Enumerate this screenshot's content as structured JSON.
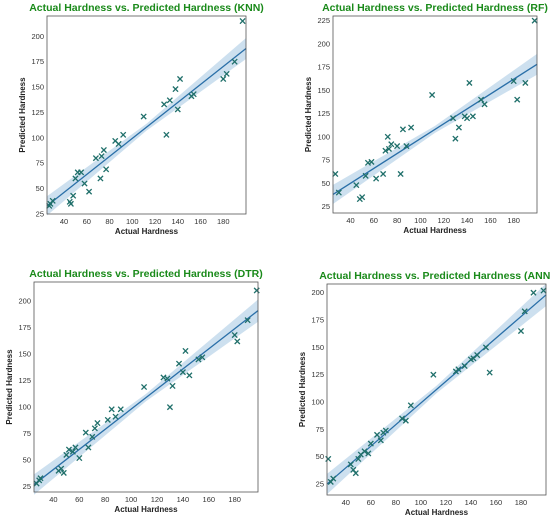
{
  "colors": {
    "marker": "#1f6f6a",
    "line": "#2a6fa8",
    "band": "#bcd6ea",
    "title": "#1a8a1a"
  },
  "chart_data": [
    {
      "type": "scatter",
      "title": "Actual Hardness vs. Predicted Hardness (KNN)",
      "xlabel": "Actual Hardness",
      "ylabel": "Predicted Hardness",
      "xlim": [
        25,
        200
      ],
      "ylim": [
        25,
        220
      ],
      "xticks": [
        40,
        60,
        80,
        100,
        120,
        140,
        160,
        180
      ],
      "yticks": [
        25,
        50,
        75,
        100,
        125,
        150,
        175,
        200
      ],
      "fit": {
        "x": [
          25,
          200
        ],
        "y": [
          33,
          188
        ]
      },
      "x": [
        27,
        28,
        30,
        45,
        46,
        48,
        50,
        52,
        55,
        58,
        62,
        68,
        72,
        73,
        75,
        77,
        85,
        88,
        92,
        110,
        128,
        130,
        133,
        138,
        140,
        142,
        152,
        154,
        180,
        183,
        190,
        197
      ],
      "y": [
        33,
        35,
        38,
        37,
        35,
        43,
        60,
        66,
        66,
        55,
        47,
        80,
        60,
        82,
        88,
        69,
        97,
        94,
        103,
        121,
        133,
        103,
        137,
        148,
        128,
        158,
        141,
        143,
        158,
        163,
        175,
        215
      ]
    },
    {
      "type": "scatter",
      "title": "Actual Hardness vs. Predicted Hardness (RF)",
      "xlabel": "Actual Hardness",
      "ylabel": "Predicted Hardness",
      "xlim": [
        25,
        200
      ],
      "ylim": [
        18,
        230
      ],
      "xticks": [
        40,
        60,
        80,
        100,
        120,
        140,
        160,
        180
      ],
      "yticks": [
        25,
        50,
        75,
        100,
        125,
        150,
        175,
        200,
        225
      ],
      "fit": {
        "x": [
          25,
          200
        ],
        "y": [
          38,
          178
        ]
      },
      "x": [
        27,
        30,
        45,
        48,
        50,
        53,
        55,
        58,
        62,
        68,
        70,
        72,
        73,
        75,
        80,
        83,
        85,
        88,
        92,
        110,
        128,
        130,
        133,
        138,
        140,
        142,
        145,
        152,
        155,
        180,
        183,
        190,
        198
      ],
      "y": [
        60,
        40,
        48,
        33,
        35,
        58,
        72,
        73,
        55,
        60,
        85,
        100,
        87,
        92,
        90,
        60,
        108,
        90,
        110,
        145,
        120,
        98,
        110,
        122,
        120,
        158,
        122,
        140,
        135,
        160,
        140,
        158,
        225
      ]
    },
    {
      "type": "scatter",
      "title": "Actual Hardness vs. Predicted Hardness (DTR)",
      "xlabel": "Actual Hardness",
      "ylabel": "Predicted Hardness",
      "xlim": [
        25,
        198
      ],
      "ylim": [
        20,
        218
      ],
      "xticks": [
        40,
        60,
        80,
        100,
        120,
        140,
        160,
        180
      ],
      "yticks": [
        25,
        50,
        75,
        100,
        125,
        150,
        175,
        200
      ],
      "fit": {
        "x": [
          25,
          198
        ],
        "y": [
          27,
          191
        ]
      },
      "x": [
        27,
        29,
        30,
        44,
        46,
        48,
        50,
        52,
        55,
        57,
        60,
        65,
        67,
        70,
        72,
        74,
        82,
        85,
        88,
        92,
        110,
        125,
        128,
        130,
        132,
        137,
        140,
        142,
        145,
        152,
        155,
        180,
        182,
        190,
        197
      ],
      "y": [
        28,
        31,
        33,
        40,
        42,
        38,
        55,
        60,
        58,
        62,
        52,
        76,
        62,
        72,
        80,
        85,
        88,
        98,
        91,
        98,
        119,
        128,
        127,
        100,
        120,
        141,
        133,
        153,
        130,
        145,
        147,
        168,
        162,
        182,
        210
      ]
    },
    {
      "type": "scatter",
      "title": "Actual Hardness vs. Predicted Hardness (ANN)",
      "xlabel": "Actual Hardness",
      "ylabel": "Predicted Hardness",
      "xlim": [
        25,
        200
      ],
      "ylim": [
        15,
        208
      ],
      "xticks": [
        40,
        60,
        80,
        100,
        120,
        140,
        160,
        180
      ],
      "yticks": [
        25,
        50,
        75,
        100,
        125,
        150,
        175,
        200
      ],
      "fit": {
        "x": [
          25,
          200
        ],
        "y": [
          25,
          198
        ]
      },
      "x": [
        26,
        28,
        30,
        44,
        46,
        48,
        50,
        52,
        55,
        58,
        60,
        65,
        68,
        70,
        72,
        85,
        88,
        92,
        110,
        128,
        130,
        135,
        140,
        142,
        145,
        152,
        155,
        180,
        183,
        190,
        198
      ],
      "y": [
        48,
        27,
        30,
        43,
        38,
        35,
        48,
        52,
        55,
        53,
        62,
        70,
        65,
        72,
        74,
        85,
        83,
        97,
        125,
        128,
        130,
        133,
        139,
        140,
        143,
        150,
        127,
        165,
        183,
        200,
        202
      ]
    }
  ]
}
